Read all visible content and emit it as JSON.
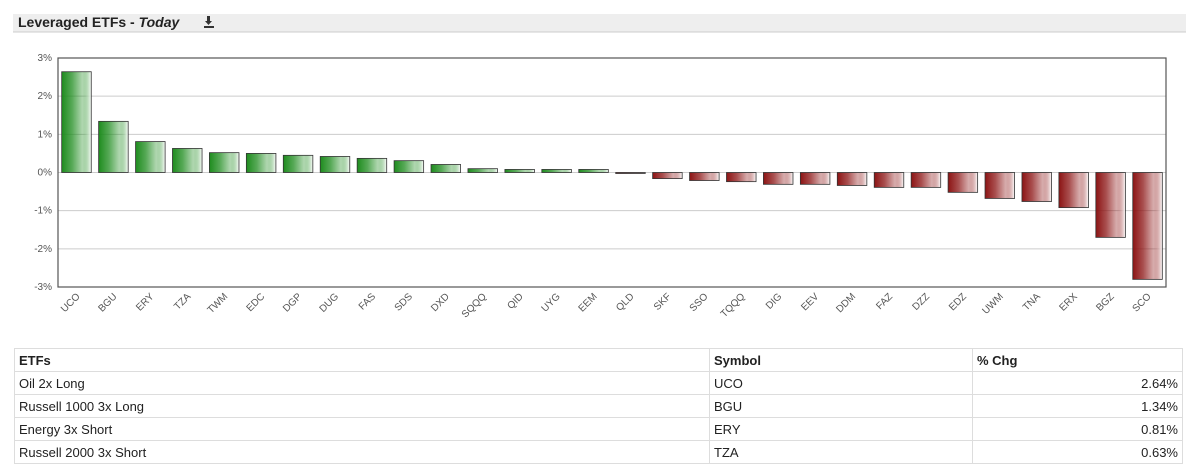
{
  "header": {
    "title": "Leveraged ETFs -",
    "period": "Today"
  },
  "chart_data": {
    "type": "bar",
    "categories": [
      "UCO",
      "BGU",
      "ERY",
      "TZA",
      "TWM",
      "EDC",
      "DGP",
      "DUG",
      "FAS",
      "SDS",
      "DXD",
      "SQQQ",
      "QID",
      "UYG",
      "EEM",
      "QLD",
      "SKF",
      "SSO",
      "TQQQ",
      "DIG",
      "EEV",
      "DDM",
      "FAZ",
      "DZZ",
      "EDZ",
      "UWM",
      "TNA",
      "ERX",
      "BGZ",
      "SCO"
    ],
    "values": [
      2.64,
      1.34,
      0.81,
      0.63,
      0.52,
      0.5,
      0.45,
      0.42,
      0.37,
      0.31,
      0.21,
      0.1,
      0.08,
      0.08,
      0.08,
      -0.02,
      -0.16,
      -0.21,
      -0.24,
      -0.31,
      -0.31,
      -0.34,
      -0.39,
      -0.39,
      -0.52,
      -0.68,
      -0.76,
      -0.92,
      -1.7,
      -2.8
    ],
    "positive_color": "#1e8c1e",
    "negative_color": "#8c1414",
    "ylim": [
      -3,
      3
    ],
    "yticks": [
      {
        "value": -3,
        "label": "-3%"
      },
      {
        "value": -2,
        "label": "-2%"
      },
      {
        "value": -1,
        "label": "-1%"
      },
      {
        "value": 0,
        "label": "0%"
      },
      {
        "value": 1,
        "label": "1%"
      },
      {
        "value": 2,
        "label": "2%"
      },
      {
        "value": 3,
        "label": "3%"
      }
    ],
    "grid": true
  },
  "table": {
    "columns": [
      "ETFs",
      "Symbol",
      "% Chg"
    ],
    "rows": [
      [
        "Oil 2x Long",
        "UCO",
        "2.64%"
      ],
      [
        "Russell 1000 3x Long",
        "BGU",
        "1.34%"
      ],
      [
        "Energy 3x Short",
        "ERY",
        "0.81%"
      ],
      [
        "Russell 2000 3x Short",
        "TZA",
        "0.63%"
      ]
    ]
  }
}
